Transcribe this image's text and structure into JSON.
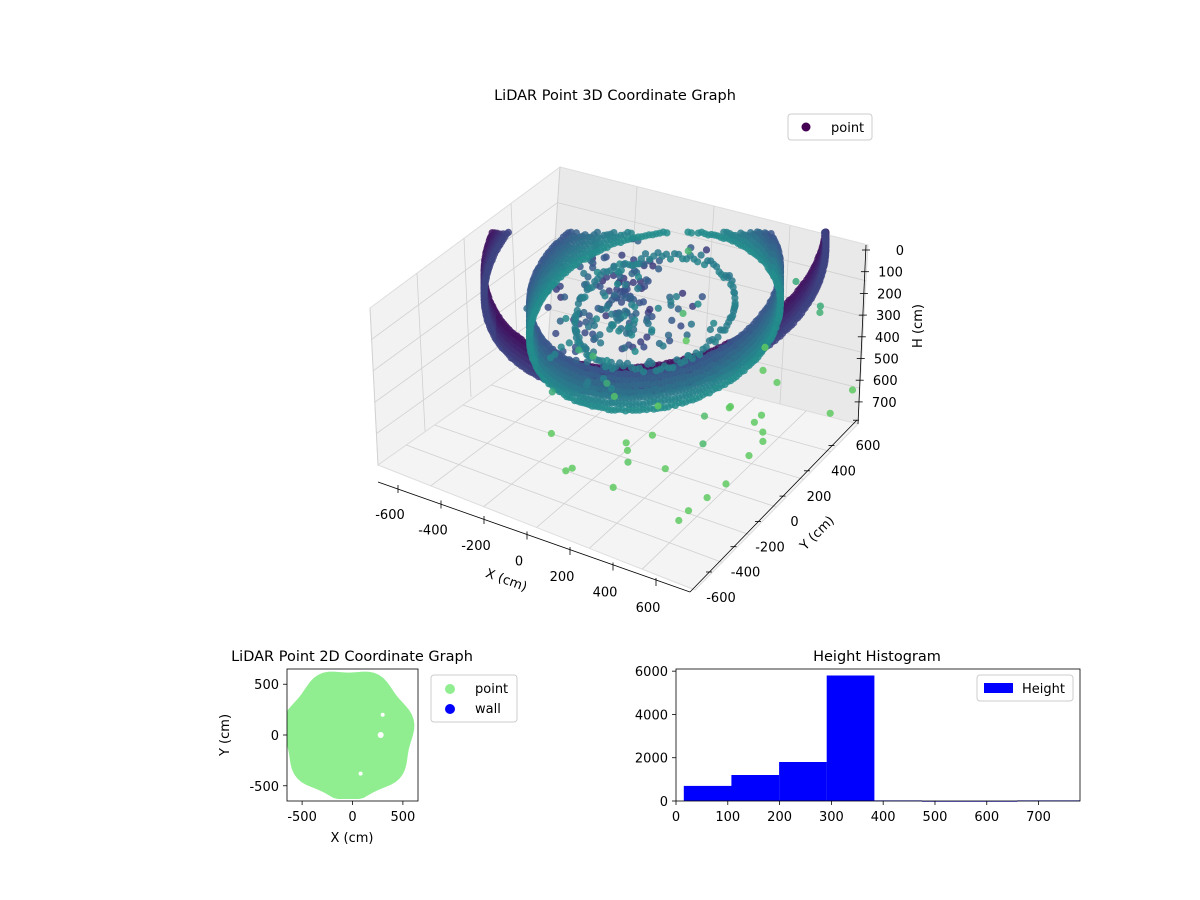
{
  "chart_data": [
    {
      "type": "scatter",
      "title": "LiDAR Point 3D Coordinate Graph",
      "xlabel": "X (cm)",
      "ylabel": "Y (cm)",
      "zlabel": "H (cm)",
      "xlim": [
        -650,
        650
      ],
      "ylim": [
        -650,
        650
      ],
      "zlim": [
        750,
        0
      ],
      "x_ticks": [
        -600,
        -400,
        -200,
        0,
        200,
        400,
        600
      ],
      "y_ticks": [
        -600,
        -400,
        -200,
        0,
        200,
        400,
        600
      ],
      "z_ticks": [
        0,
        100,
        200,
        300,
        400,
        500,
        600,
        700
      ],
      "series": [
        {
          "name": "point",
          "color": "#440154"
        }
      ],
      "colormap": "viridis",
      "legend_position": "top-right",
      "grid": true
    },
    {
      "type": "scatter",
      "title": "LiDAR Point 2D Coordinate Graph",
      "xlabel": "X (cm)",
      "ylabel": "Y (cm)",
      "xlim": [
        -650,
        650
      ],
      "ylim": [
        -650,
        650
      ],
      "x_ticks": [
        -500,
        0,
        500
      ],
      "y_ticks": [
        -500,
        0,
        500
      ],
      "series": [
        {
          "name": "point",
          "color": "#90ee90"
        },
        {
          "name": "wall",
          "color": "#0000ff"
        }
      ],
      "legend_position": "outside-right"
    },
    {
      "type": "bar",
      "title": "Height Histogram",
      "xlim": [
        0,
        780
      ],
      "ylim": [
        0,
        6100
      ],
      "x_ticks": [
        0,
        100,
        200,
        300,
        400,
        500,
        600,
        700
      ],
      "y_ticks": [
        0,
        2000,
        4000,
        6000
      ],
      "bin_edges": [
        15,
        107,
        199,
        291,
        383,
        475,
        567,
        659,
        780
      ],
      "values": [
        700,
        1200,
        1800,
        5800,
        30,
        5,
        5,
        30
      ],
      "series": [
        {
          "name": "Height",
          "color": "#0000ff"
        }
      ],
      "legend_position": "top-right"
    }
  ]
}
